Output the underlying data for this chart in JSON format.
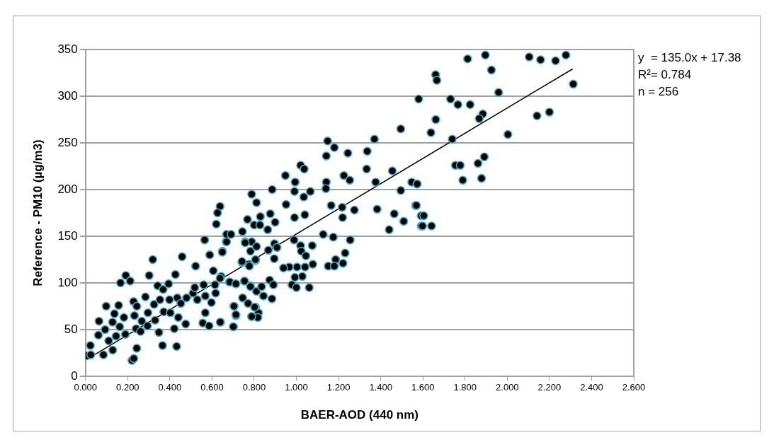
{
  "chart_data": {
    "type": "scatter",
    "xlabel": "BAER-AOD (440 nm)",
    "ylabel": "Reference - PM10 (µg/m3)",
    "annotations": [
      "y  = 135.0x + 17.38",
      "R²= 0.784",
      "n = 256"
    ],
    "xlim": [
      0,
      2.6
    ],
    "xticks": [
      {
        "value": 0,
        "label": "0.000"
      },
      {
        "value": 0.2,
        "label": "0.200"
      },
      {
        "value": 0.4,
        "label": "0.400"
      },
      {
        "value": 0.6,
        "label": "0.600"
      },
      {
        "value": 0.8,
        "label": "0.800"
      },
      {
        "value": 1,
        "label": "1.000"
      },
      {
        "value": 1.2,
        "label": "1.200"
      },
      {
        "value": 1.4,
        "label": "1.400"
      },
      {
        "value": 1.6,
        "label": "1.600"
      },
      {
        "value": 1.8,
        "label": "1.800"
      },
      {
        "value": 2,
        "label": "2.000"
      },
      {
        "value": 2.2,
        "label": "2.200"
      },
      {
        "value": 2.4,
        "label": "2.400"
      },
      {
        "value": 2.6,
        "label": "2.600"
      }
    ],
    "ylim": [
      0,
      350
    ],
    "yticks": [
      0,
      50,
      100,
      150,
      200,
      250,
      300,
      350
    ],
    "grid": "y",
    "legend": false,
    "series": [
      {
        "type": "scatter",
        "color": "#000000",
        "marker": "circle",
        "x": [
          0.006,
          0.023,
          0.025,
          0.064,
          0.061,
          0.085,
          0.098,
          0.093,
          0.11,
          0.128,
          0.129,
          0.137,
          0.145,
          0.157,
          0.162,
          0.166,
          0.182,
          0.191,
          0.212,
          0.189,
          0.22,
          0.229,
          0.243,
          0.228,
          0.232,
          0.243,
          0.24,
          0.261,
          0.267,
          0.284,
          0.296,
          0.294,
          0.302,
          0.319,
          0.325,
          0.33,
          0.342,
          0.348,
          0.353,
          0.365,
          0.368,
          0.371,
          0.394,
          0.398,
          0.402,
          0.421,
          0.426,
          0.435,
          0.432,
          0.44,
          0.452,
          0.458,
          0.475,
          0.479,
          0.51,
          0.518,
          0.522,
          0.53,
          0.556,
          0.56,
          0.565,
          0.568,
          0.568,
          0.586,
          0.589,
          0.597,
          0.606,
          0.614,
          0.617,
          0.64,
          0.643,
          0.649,
          0.667,
          0.682,
          0.704,
          0.701,
          0.713,
          0.713,
          0.742,
          0.745,
          0.754,
          0.757,
          0.774,
          0.782,
          0.788,
          0.806,
          0.811,
          0.806,
          0.788,
          0.638,
          0.626,
          0.62,
          0.669,
          0.69,
          0.788,
          0.811,
          0.768,
          0.8,
          0.827,
          0.829,
          0.744,
          0.885,
          0.876,
          0.899,
          0.864,
          0.948,
          0.951,
          0.994,
          0.991,
          0.991,
          1.02,
          1.037,
          1.066,
          1.035,
          1.04,
          1.148,
          1.18,
          1.142,
          1.142,
          1.14,
          1.165,
          1.217,
          1.219,
          1.275,
          1.244,
          1.225,
          1.253,
          1.336,
          1.37,
          1.333,
          1.376,
          1.383,
          1.455,
          1.495,
          1.495,
          1.547,
          1.572,
          1.58,
          1.565,
          1.592,
          1.592,
          1.464,
          1.509,
          1.44,
          0.989,
          1.02,
          1.023,
          1.045,
          1.075,
          1.127,
          1.175,
          1.255,
          1.231,
          1.186,
          1.151,
          1.18,
          1.221,
          1.078,
          1.041,
          1.003,
          0.966,
          0.939,
          1.028,
          0.993,
          0.979,
          1.0,
          1.061,
          0.896,
          0.908,
          0.867,
          0.895,
          0.873,
          0.891,
          0.835,
          0.844,
          0.884,
          0.82,
          0.817,
          0.788,
          0.802,
          0.771,
          0.745,
          0.704,
          0.713,
          0.701,
          0.639,
          0.777,
          0.806,
          0.742,
          0.782,
          0.757,
          0.811,
          0.669,
          0.649,
          0.638,
          0.684,
          0.713,
          0.754,
          0.782,
          1.661,
          1.638,
          1.731,
          1.766,
          1.824,
          1.884,
          1.867,
          1.739,
          2.003,
          2.141,
          2.2,
          1.754,
          1.777,
          1.861,
          1.891,
          1.789,
          1.878,
          1.573,
          1.569,
          1.604,
          1.598,
          1.641,
          1.812,
          1.896,
          2.104,
          2.158,
          2.229,
          2.278,
          1.925,
          1.66,
          1.666,
          1.959,
          2.313
        ],
        "values": [
          22,
          33,
          23,
          59,
          44,
          23,
          75,
          50,
          38,
          58,
          28,
          67,
          43,
          76,
          53,
          100,
          63,
          108,
          102,
          45,
          17,
          19,
          30,
          80,
          65,
          75,
          51,
          48,
          59,
          85,
          68,
          54,
          108,
          125,
          77,
          60,
          97,
          47,
          82,
          33,
          93,
          69,
          99,
          82,
          68,
          51,
          109,
          84,
          32,
          63,
          78,
          128,
          56,
          84,
          89,
          95,
          118,
          82,
          57,
          98,
          146,
          86,
          68,
          54,
          130,
          79,
          113,
          98,
          89,
          58,
          107,
          134,
          144,
          101,
          75,
          53,
          65,
          99,
          122,
          84,
          102,
          144,
          120,
          97,
          64,
          74,
          91,
          124,
          144,
          182,
          175,
          163,
          152,
          152,
          195,
          186,
          168,
          162,
          162,
          171,
          155,
          200,
          174,
          165,
          157,
          215,
          184,
          208,
          198,
          170,
          226,
          222,
          198,
          192,
          173,
          252,
          245,
          236,
          208,
          201,
          183,
          181,
          170,
          178,
          239,
          215,
          210,
          241,
          254,
          222,
          208,
          179,
          220,
          265,
          199,
          208,
          206,
          297,
          183,
          172,
          161,
          174,
          166,
          157,
          146,
          140,
          134,
          129,
          140,
          152,
          149,
          146,
          132,
          125,
          118,
          118,
          121,
          120,
          117,
          117,
          117,
          116,
          107,
          106,
          98,
          95,
          95,
          142,
          138,
          135,
          126,
          103,
          98,
          96,
          86,
          83,
          68,
          63,
          64,
          74,
          78,
          84,
          75,
          66,
          53,
          58,
          118,
          125,
          123,
          134,
          143,
          139,
          144,
          133,
          105,
          101,
          99,
          102,
          96,
          275,
          261,
          297,
          291,
          291,
          281,
          276,
          254,
          259,
          279,
          283,
          226,
          226,
          228,
          235,
          210,
          212,
          206,
          183,
          172,
          161,
          161,
          340,
          344,
          342,
          339,
          338,
          344,
          328,
          323,
          317,
          304,
          313
        ]
      },
      {
        "type": "line",
        "color": "#000000",
        "marker": "none",
        "x": [
          0.01,
          2.31
        ],
        "values": [
          18.7,
          329.2
        ]
      }
    ]
  }
}
